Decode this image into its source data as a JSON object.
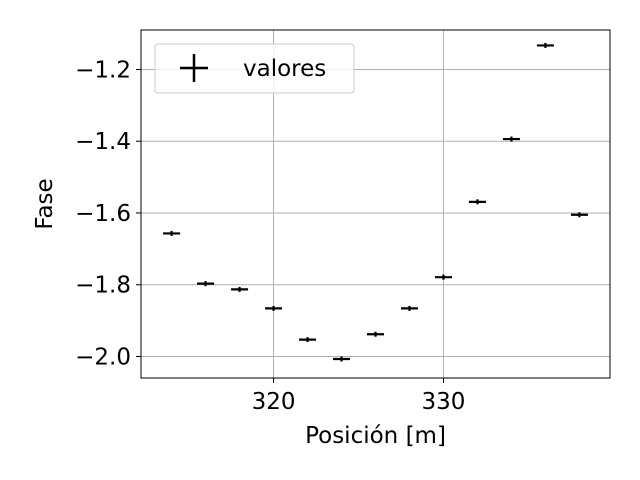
{
  "chart_data": {
    "type": "scatter",
    "title": "",
    "xlabel": "Posición [m]",
    "ylabel": "Fase",
    "xlim": [
      312.2,
      339.8
    ],
    "ylim": [
      -2.06,
      -1.09
    ],
    "xticks": [
      320,
      330
    ],
    "xtick_labels": [
      "320",
      "330"
    ],
    "yticks": [
      -2.0,
      -1.8,
      -1.6,
      -1.4,
      -1.2
    ],
    "ytick_labels": [
      "−2.0",
      "−1.8",
      "−1.6",
      "−1.4",
      "−1.2"
    ],
    "grid": true,
    "legend": {
      "position": "top-left",
      "entries": [
        "valores"
      ]
    },
    "series": [
      {
        "name": "valores",
        "marker": "errorbar",
        "color": "#000000",
        "x": [
          314,
          316,
          318,
          320,
          322,
          324,
          326,
          328,
          330,
          332,
          334,
          336,
          338
        ],
        "y": [
          -1.657,
          -1.797,
          -1.813,
          -1.866,
          -1.953,
          -2.007,
          -1.938,
          -1.866,
          -1.779,
          -1.569,
          -1.394,
          -1.133,
          -1.605
        ],
        "xerr": 0.5
      }
    ]
  }
}
